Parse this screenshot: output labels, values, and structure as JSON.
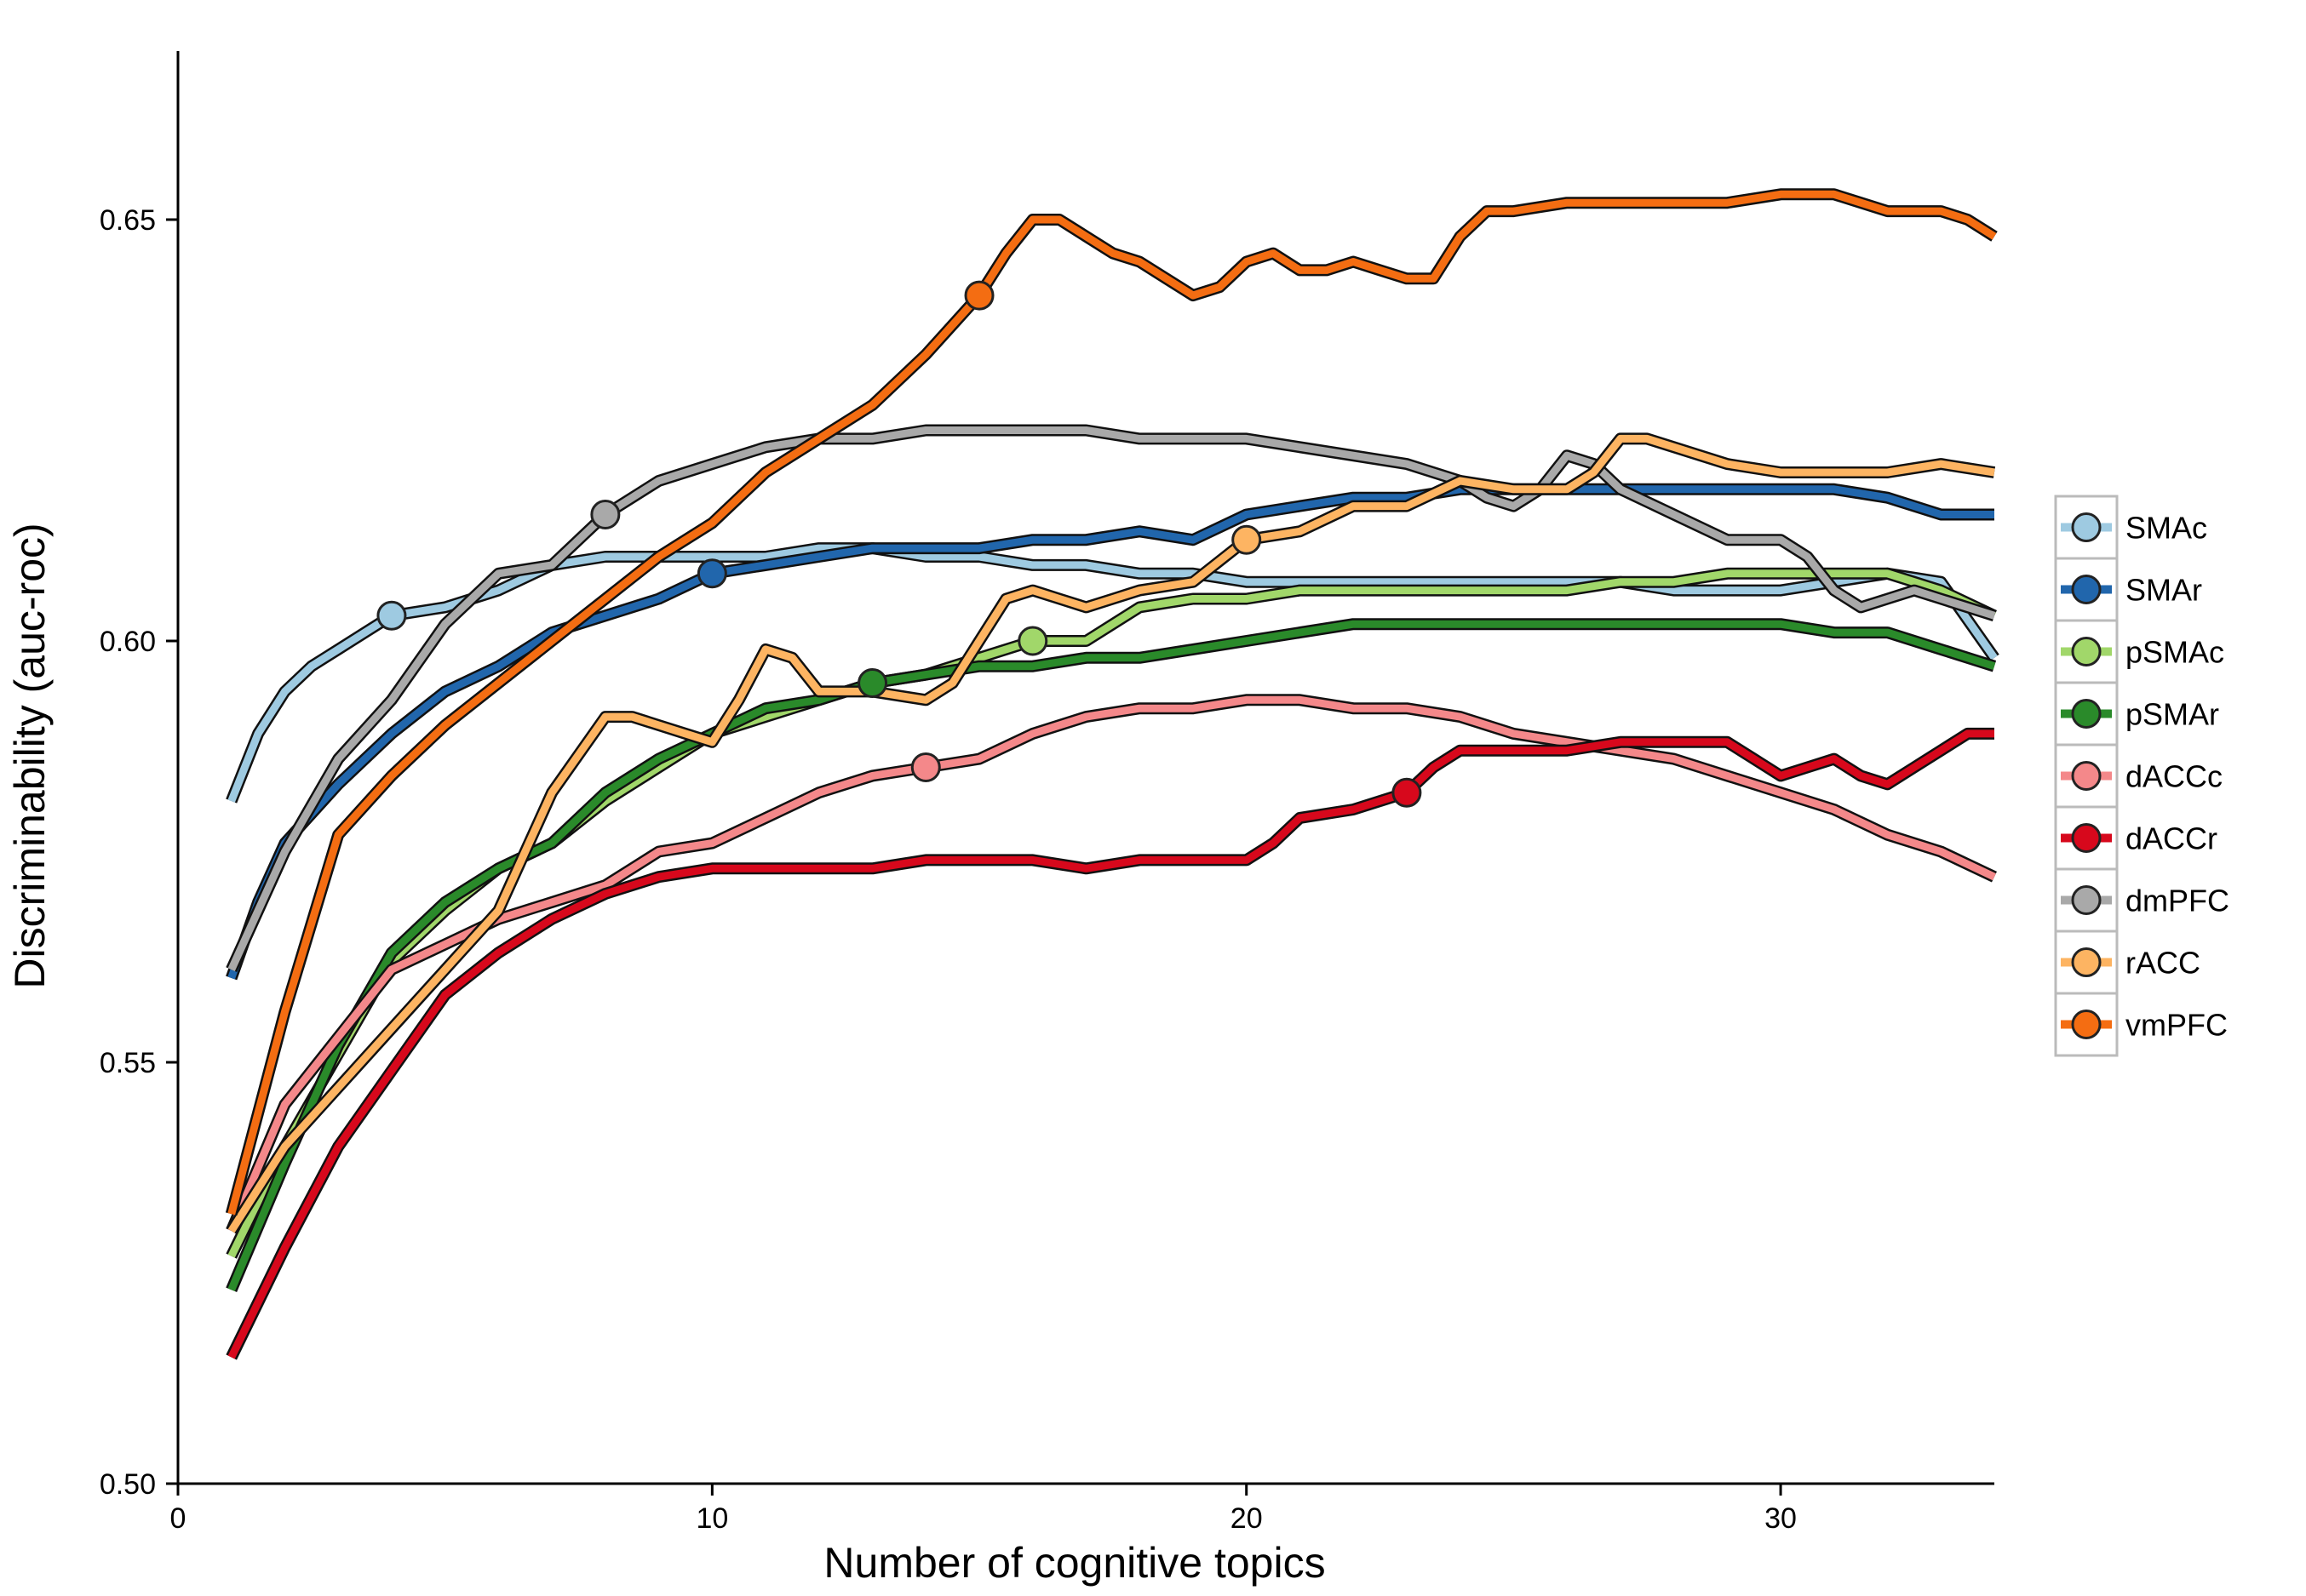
{
  "chart_data": {
    "type": "line",
    "xlabel": "Number of cognitive topics",
    "ylabel": "Discriminability (auc-roc)",
    "xlim": [
      0,
      34
    ],
    "ylim": [
      0.5,
      0.67
    ],
    "xticks": [
      0,
      10,
      20,
      30
    ],
    "yticks": [
      0.5,
      0.55,
      0.6,
      0.65
    ],
    "xtick_labels": [
      "0",
      "10",
      "20",
      "30"
    ],
    "ytick_labels": [
      "0.50",
      "0.55",
      "0.60",
      "0.65"
    ],
    "grid": false,
    "legend_position": "right",
    "series": [
      {
        "name": "SMAc",
        "color": "#9ecae1",
        "marker_x": 4,
        "marker_y": 0.603,
        "x": [
          1,
          1.5,
          2,
          2.5,
          3,
          3.5,
          4,
          5,
          6,
          7,
          8,
          9,
          10,
          11,
          12,
          13,
          14,
          15,
          16,
          17,
          18,
          19,
          20,
          21,
          22,
          23,
          24,
          25,
          26,
          27,
          28,
          29,
          30,
          31,
          32,
          33,
          34
        ],
        "y": [
          0.581,
          0.589,
          0.594,
          0.597,
          0.599,
          0.601,
          0.603,
          0.604,
          0.606,
          0.609,
          0.61,
          0.61,
          0.61,
          0.61,
          0.611,
          0.611,
          0.61,
          0.61,
          0.609,
          0.609,
          0.608,
          0.608,
          0.607,
          0.607,
          0.607,
          0.607,
          0.607,
          0.607,
          0.607,
          0.607,
          0.606,
          0.606,
          0.606,
          0.607,
          0.608,
          0.607,
          0.598
        ]
      },
      {
        "name": "SMAr",
        "color": "#2166ac",
        "marker_x": 10,
        "marker_y": 0.608,
        "x": [
          1,
          1.5,
          2,
          3,
          4,
          5,
          6,
          7,
          8,
          9,
          10,
          11,
          12,
          13,
          14,
          15,
          16,
          17,
          18,
          19,
          20,
          21,
          22,
          23,
          24,
          25,
          26,
          27,
          28,
          29,
          30,
          31,
          32,
          33,
          34
        ],
        "y": [
          0.56,
          0.569,
          0.576,
          0.583,
          0.589,
          0.594,
          0.597,
          0.601,
          0.603,
          0.605,
          0.608,
          0.609,
          0.61,
          0.611,
          0.611,
          0.611,
          0.612,
          0.612,
          0.613,
          0.612,
          0.615,
          0.616,
          0.617,
          0.617,
          0.618,
          0.618,
          0.618,
          0.618,
          0.618,
          0.618,
          0.618,
          0.618,
          0.617,
          0.615,
          0.615
        ]
      },
      {
        "name": "pSMAc",
        "color": "#a1d76a",
        "marker_x": 16,
        "marker_y": 0.6,
        "x": [
          1,
          2,
          3,
          4,
          5,
          6,
          7,
          8,
          9,
          10,
          11,
          12,
          13,
          14,
          15,
          16,
          17,
          18,
          19,
          20,
          21,
          22,
          23,
          24,
          25,
          26,
          27,
          28,
          29,
          30,
          31,
          32,
          33,
          34
        ],
        "y": [
          0.527,
          0.54,
          0.551,
          0.562,
          0.568,
          0.573,
          0.576,
          0.581,
          0.585,
          0.589,
          0.591,
          0.593,
          0.595,
          0.596,
          0.598,
          0.6,
          0.6,
          0.604,
          0.605,
          0.605,
          0.606,
          0.606,
          0.606,
          0.606,
          0.606,
          0.606,
          0.607,
          0.607,
          0.608,
          0.608,
          0.608,
          0.608,
          0.606,
          0.603
        ]
      },
      {
        "name": "pSMAr",
        "color": "#2a8a2a",
        "marker_x": 13,
        "marker_y": 0.595,
        "x": [
          1,
          2,
          3,
          4,
          5,
          6,
          7,
          8,
          9,
          10,
          11,
          12,
          13,
          14,
          15,
          16,
          17,
          18,
          19,
          20,
          21,
          22,
          23,
          24,
          25,
          26,
          27,
          28,
          29,
          30,
          31,
          32,
          33,
          34
        ],
        "y": [
          0.523,
          0.538,
          0.552,
          0.563,
          0.569,
          0.573,
          0.576,
          0.582,
          0.586,
          0.589,
          0.592,
          0.593,
          0.595,
          0.596,
          0.597,
          0.597,
          0.598,
          0.598,
          0.599,
          0.6,
          0.601,
          0.602,
          0.602,
          0.602,
          0.602,
          0.602,
          0.602,
          0.602,
          0.602,
          0.602,
          0.601,
          0.601,
          0.599,
          0.597
        ]
      },
      {
        "name": "dACCc",
        "color": "#f4888a",
        "marker_x": 14,
        "marker_y": 0.585,
        "x": [
          1,
          2,
          3,
          4,
          5,
          6,
          7,
          8,
          9,
          10,
          11,
          12,
          13,
          14,
          15,
          16,
          17,
          18,
          19,
          20,
          21,
          22,
          23,
          24,
          25,
          26,
          27,
          28,
          29,
          30,
          31,
          32,
          33,
          34
        ],
        "y": [
          0.53,
          0.545,
          0.553,
          0.561,
          0.564,
          0.567,
          0.569,
          0.571,
          0.575,
          0.576,
          0.579,
          0.582,
          0.584,
          0.585,
          0.586,
          0.589,
          0.591,
          0.592,
          0.592,
          0.593,
          0.593,
          0.592,
          0.592,
          0.591,
          0.589,
          0.588,
          0.587,
          0.586,
          0.584,
          0.582,
          0.58,
          0.577,
          0.575,
          0.572
        ]
      },
      {
        "name": "dACCr",
        "color": "#d7081c",
        "marker_x": 23,
        "marker_y": 0.582,
        "x": [
          1,
          2,
          3,
          4,
          5,
          6,
          7,
          8,
          9,
          10,
          11,
          12,
          13,
          14,
          15,
          16,
          17,
          18,
          19,
          20,
          20.5,
          21,
          22,
          23,
          23.5,
          24,
          25,
          26,
          27,
          28,
          29,
          29.5,
          30,
          30.5,
          31,
          31.5,
          32,
          32.5,
          33,
          33.5,
          34
        ],
        "y": [
          0.515,
          0.528,
          0.54,
          0.549,
          0.558,
          0.563,
          0.567,
          0.57,
          0.572,
          0.573,
          0.573,
          0.573,
          0.573,
          0.574,
          0.574,
          0.574,
          0.573,
          0.574,
          0.574,
          0.574,
          0.576,
          0.579,
          0.58,
          0.582,
          0.585,
          0.587,
          0.587,
          0.587,
          0.588,
          0.588,
          0.588,
          0.586,
          0.584,
          0.585,
          0.586,
          0.584,
          0.583,
          0.585,
          0.587,
          0.589,
          0.589
        ]
      },
      {
        "name": "dmPFC",
        "color": "#a9a9a9",
        "marker_x": 8,
        "marker_y": 0.615,
        "x": [
          1,
          2,
          3,
          4,
          5,
          6,
          7,
          8,
          9,
          10,
          11,
          12,
          13,
          14,
          15,
          16,
          17,
          18,
          19,
          20,
          21,
          22,
          23,
          24,
          24.5,
          25,
          25.5,
          26,
          26.5,
          27,
          28,
          29,
          30,
          30.5,
          31,
          31.5,
          32,
          32.5,
          33,
          34
        ],
        "y": [
          0.561,
          0.575,
          0.586,
          0.593,
          0.602,
          0.608,
          0.609,
          0.615,
          0.619,
          0.621,
          0.623,
          0.624,
          0.624,
          0.625,
          0.625,
          0.625,
          0.625,
          0.624,
          0.624,
          0.624,
          0.623,
          0.622,
          0.621,
          0.619,
          0.617,
          0.616,
          0.618,
          0.622,
          0.621,
          0.618,
          0.615,
          0.612,
          0.612,
          0.61,
          0.606,
          0.604,
          0.605,
          0.606,
          0.605,
          0.603
        ]
      },
      {
        "name": "rACC",
        "color": "#fdb462",
        "marker_x": 20,
        "marker_y": 0.612,
        "x": [
          1,
          2,
          3,
          4,
          5,
          6,
          7,
          8,
          8.5,
          9,
          9.5,
          10,
          10.5,
          11,
          11.5,
          12,
          13,
          14,
          14.5,
          15,
          15.5,
          16,
          16.5,
          17,
          17.5,
          18,
          19,
          20,
          21,
          22,
          23,
          24,
          25,
          26,
          26.5,
          27,
          27.5,
          28,
          29,
          30,
          31,
          32,
          33,
          34
        ],
        "y": [
          0.53,
          0.54,
          0.547,
          0.554,
          0.561,
          0.568,
          0.582,
          0.591,
          0.591,
          0.59,
          0.589,
          0.588,
          0.593,
          0.599,
          0.598,
          0.594,
          0.594,
          0.593,
          0.595,
          0.6,
          0.605,
          0.606,
          0.605,
          0.604,
          0.605,
          0.606,
          0.607,
          0.612,
          0.613,
          0.616,
          0.616,
          0.619,
          0.618,
          0.618,
          0.62,
          0.624,
          0.624,
          0.623,
          0.621,
          0.62,
          0.62,
          0.62,
          0.621,
          0.62
        ]
      },
      {
        "name": "vmPFC",
        "color": "#f46d12",
        "marker_x": 15,
        "marker_y": 0.641,
        "x": [
          1,
          2,
          3,
          4,
          5,
          6,
          7,
          8,
          9,
          10,
          11,
          12,
          13,
          14,
          15,
          15.5,
          16,
          16.5,
          17,
          17.5,
          18,
          18.5,
          19,
          19.5,
          20,
          20.5,
          21,
          21.5,
          22,
          22.5,
          23,
          23.5,
          24,
          24.5,
          25,
          26,
          27,
          28,
          29,
          30,
          30.5,
          31,
          31.5,
          32,
          32.5,
          33,
          33.5,
          34
        ],
        "y": [
          0.532,
          0.556,
          0.577,
          0.584,
          0.59,
          0.595,
          0.6,
          0.605,
          0.61,
          0.614,
          0.62,
          0.624,
          0.628,
          0.634,
          0.641,
          0.646,
          0.65,
          0.65,
          0.648,
          0.646,
          0.645,
          0.643,
          0.641,
          0.642,
          0.645,
          0.646,
          0.644,
          0.644,
          0.645,
          0.644,
          0.643,
          0.643,
          0.648,
          0.651,
          0.651,
          0.652,
          0.652,
          0.652,
          0.652,
          0.653,
          0.653,
          0.653,
          0.652,
          0.651,
          0.651,
          0.651,
          0.65,
          0.648
        ]
      }
    ]
  }
}
